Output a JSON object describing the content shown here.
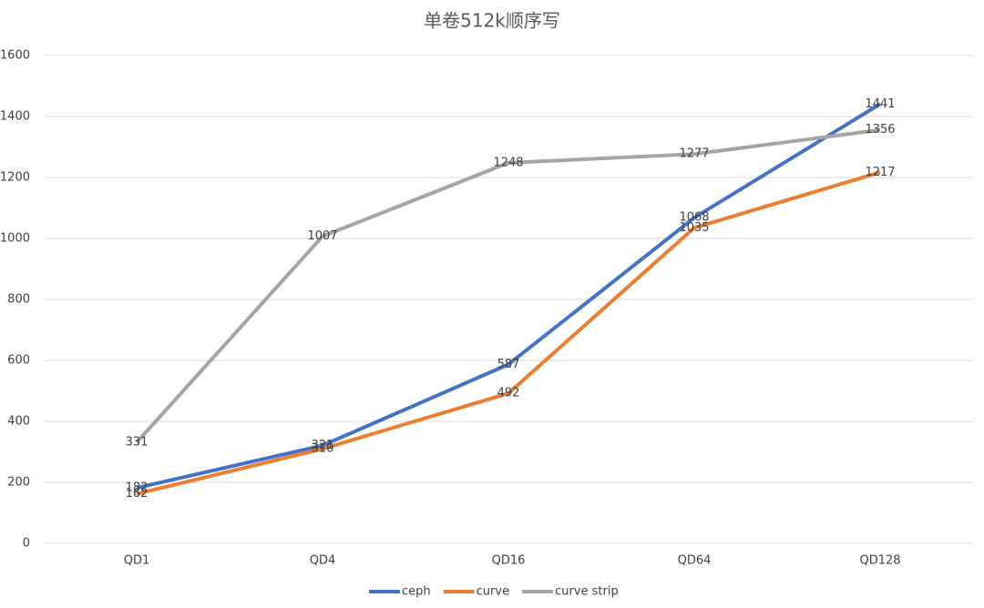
{
  "chart_data": {
    "type": "line",
    "title": "单卷512k顺序写",
    "categories": [
      "QD1",
      "QD4",
      "QD16",
      "QD64",
      "QD128"
    ],
    "series": [
      {
        "name": "ceph",
        "color": "#4472c4",
        "values": [
          182,
          321,
          587,
          1068,
          1441
        ]
      },
      {
        "name": "curve",
        "color": "#ed7d31",
        "values": [
          162,
          310,
          492,
          1035,
          1217
        ]
      },
      {
        "name": "curve strip",
        "color": "#a5a5a5",
        "values": [
          331,
          1007,
          1248,
          1277,
          1356
        ]
      }
    ],
    "ylim": [
      0,
      1600
    ],
    "yticks": [
      0,
      200,
      400,
      600,
      800,
      1000,
      1200,
      1400,
      1600
    ],
    "grid": true,
    "legend": "bottom"
  }
}
